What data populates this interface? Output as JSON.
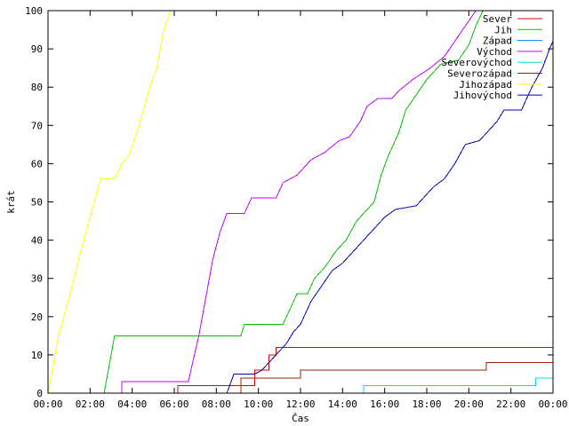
{
  "chart_data": {
    "type": "line",
    "xlabel": "Čas",
    "ylabel": "krát",
    "xlim": [
      "00:00",
      "24:00"
    ],
    "ylim": [
      0,
      100
    ],
    "x_ticks": [
      "00:00",
      "02:00",
      "04:00",
      "06:00",
      "08:00",
      "10:00",
      "12:00",
      "14:00",
      "16:00",
      "18:00",
      "20:00",
      "22:00",
      "00:00"
    ],
    "y_ticks": [
      "0",
      "10",
      "20",
      "30",
      "40",
      "50",
      "60",
      "70",
      "80",
      "90",
      "100"
    ],
    "legend_position": "top-right",
    "grid": false,
    "series": [
      {
        "name": "Sever",
        "color": "#dd0000",
        "points": [
          [
            "00:00",
            0
          ],
          [
            "06:10",
            0
          ],
          [
            "06:10",
            2
          ],
          [
            "09:50",
            2
          ],
          [
            "09:50",
            6
          ],
          [
            "10:30",
            6
          ],
          [
            "10:30",
            10
          ],
          [
            "10:50",
            10
          ],
          [
            "10:50",
            12
          ],
          [
            "24:00",
            12
          ]
        ]
      },
      {
        "name": "Jih",
        "color": "#00c000",
        "points": [
          [
            "00:00",
            0
          ],
          [
            "02:40",
            0
          ],
          [
            "03:10",
            15
          ],
          [
            "09:10",
            15
          ],
          [
            "09:20",
            18
          ],
          [
            "11:10",
            18
          ],
          [
            "11:30",
            22
          ],
          [
            "11:50",
            26
          ],
          [
            "12:20",
            26
          ],
          [
            "12:40",
            30
          ],
          [
            "13:10",
            33
          ],
          [
            "13:40",
            37
          ],
          [
            "14:10",
            40
          ],
          [
            "14:40",
            45
          ],
          [
            "15:10",
            48
          ],
          [
            "15:30",
            50
          ],
          [
            "15:50",
            57
          ],
          [
            "16:10",
            62
          ],
          [
            "16:40",
            68
          ],
          [
            "17:00",
            74
          ],
          [
            "17:30",
            78
          ],
          [
            "18:00",
            82
          ],
          [
            "18:40",
            86
          ],
          [
            "19:30",
            87
          ],
          [
            "20:00",
            91
          ],
          [
            "20:20",
            96
          ],
          [
            "20:40",
            100
          ],
          [
            "24:00",
            100
          ]
        ]
      },
      {
        "name": "Západ",
        "color": "#0080ff",
        "points": []
      },
      {
        "name": "Východ",
        "color": "#c000ff",
        "points": [
          [
            "00:00",
            0
          ],
          [
            "03:30",
            0
          ],
          [
            "03:30",
            3
          ],
          [
            "06:40",
            3
          ],
          [
            "07:10",
            15
          ],
          [
            "07:30",
            25
          ],
          [
            "07:50",
            35
          ],
          [
            "08:10",
            42
          ],
          [
            "08:30",
            47
          ],
          [
            "09:20",
            47
          ],
          [
            "09:40",
            51
          ],
          [
            "10:50",
            51
          ],
          [
            "11:10",
            55
          ],
          [
            "11:50",
            57
          ],
          [
            "12:30",
            61
          ],
          [
            "13:10",
            63
          ],
          [
            "13:50",
            66
          ],
          [
            "14:20",
            67
          ],
          [
            "14:50",
            71
          ],
          [
            "15:10",
            75
          ],
          [
            "15:40",
            77
          ],
          [
            "16:20",
            77
          ],
          [
            "16:40",
            79
          ],
          [
            "17:20",
            82
          ],
          [
            "18:10",
            85
          ],
          [
            "18:50",
            88
          ],
          [
            "19:20",
            92
          ],
          [
            "19:50",
            96
          ],
          [
            "20:20",
            100
          ],
          [
            "24:00",
            100
          ]
        ]
      },
      {
        "name": "Severovýchod",
        "color": "#00e0e0",
        "points": [
          [
            "00:00",
            0
          ],
          [
            "15:00",
            0
          ],
          [
            "15:00",
            2
          ],
          [
            "23:10",
            2
          ],
          [
            "23:10",
            4
          ],
          [
            "24:00",
            4
          ]
        ]
      },
      {
        "name": "Severozápad",
        "color": "#a02000",
        "points": [
          [
            "00:00",
            0
          ],
          [
            "09:10",
            0
          ],
          [
            "09:10",
            4
          ],
          [
            "12:00",
            4
          ],
          [
            "12:00",
            6
          ],
          [
            "20:50",
            6
          ],
          [
            "20:50",
            8
          ],
          [
            "24:00",
            8
          ]
        ]
      },
      {
        "name": "Jihozápad",
        "color": "#ffff00",
        "points": [
          [
            "00:00",
            0
          ],
          [
            "00:30",
            15
          ],
          [
            "01:00",
            25
          ],
          [
            "01:30",
            36
          ],
          [
            "02:00",
            46
          ],
          [
            "02:30",
            56
          ],
          [
            "03:10",
            56
          ],
          [
            "03:30",
            60
          ],
          [
            "03:50",
            62
          ],
          [
            "04:20",
            70
          ],
          [
            "04:50",
            80
          ],
          [
            "05:10",
            85
          ],
          [
            "05:30",
            95
          ],
          [
            "05:50",
            100
          ],
          [
            "24:00",
            100
          ]
        ]
      },
      {
        "name": "Jihovýchod",
        "color": "#0000b0",
        "points": [
          [
            "00:00",
            0
          ],
          [
            "08:30",
            0
          ],
          [
            "08:50",
            5
          ],
          [
            "09:50",
            5
          ],
          [
            "10:10",
            6
          ],
          [
            "10:50",
            10
          ],
          [
            "11:20",
            13
          ],
          [
            "11:40",
            16
          ],
          [
            "12:00",
            18
          ],
          [
            "12:30",
            24
          ],
          [
            "13:00",
            28
          ],
          [
            "13:30",
            32
          ],
          [
            "14:00",
            34
          ],
          [
            "14:30",
            37
          ],
          [
            "15:00",
            40
          ],
          [
            "15:30",
            43
          ],
          [
            "16:00",
            46
          ],
          [
            "16:30",
            48
          ],
          [
            "17:30",
            49
          ],
          [
            "18:00",
            52
          ],
          [
            "18:20",
            54
          ],
          [
            "18:50",
            56
          ],
          [
            "19:20",
            60
          ],
          [
            "19:50",
            65
          ],
          [
            "20:30",
            66
          ],
          [
            "20:50",
            68
          ],
          [
            "21:20",
            71
          ],
          [
            "21:40",
            74
          ],
          [
            "22:30",
            74
          ],
          [
            "22:40",
            76
          ],
          [
            "23:00",
            80
          ],
          [
            "23:30",
            85
          ],
          [
            "23:50",
            90
          ],
          [
            "24:00",
            92
          ]
        ]
      }
    ]
  }
}
